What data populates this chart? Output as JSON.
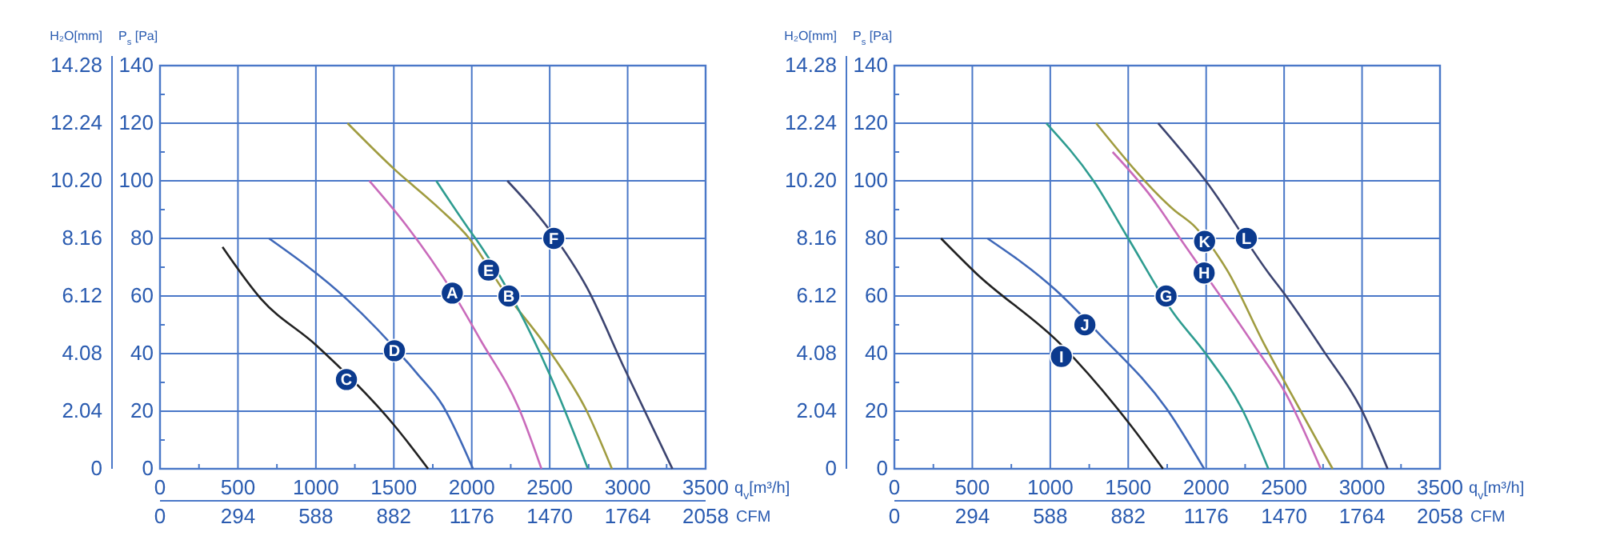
{
  "chart_data": [
    {
      "type": "line",
      "xlabel": "q$_{v}$[m³/h]",
      "ylabel": "P$_{s}$ [Pa]",
      "y2label": "H₂O[mm]",
      "x2label": "CFM",
      "xlim": [
        0,
        3500
      ],
      "xticks": [
        0,
        {
          "value": 250,
          "label": null
        },
        500,
        {
          "value": 750,
          "label": null
        },
        1000,
        {
          "value": 1250,
          "label": null
        },
        1500,
        {
          "value": 1750,
          "label": null
        },
        2000,
        {
          "value": 2250,
          "label": null
        },
        2500,
        {
          "value": 2750,
          "label": null
        },
        3000,
        {
          "value": 3250,
          "label": null
        },
        3500
      ],
      "x2lim": [
        0,
        2058
      ],
      "x2ticks": [
        0,
        294,
        588,
        882,
        1176,
        1470,
        1764,
        2058
      ],
      "ylim": [
        0,
        140
      ],
      "yticks": [
        0,
        {
          "value": 10,
          "label": null
        },
        20,
        {
          "value": 30,
          "label": null
        },
        40,
        {
          "value": 50,
          "label": null
        },
        60,
        {
          "value": 70,
          "label": null
        },
        80,
        {
          "value": 90,
          "label": null
        },
        100,
        {
          "value": 110,
          "label": null
        },
        120,
        {
          "value": 130,
          "label": null
        },
        140
      ],
      "y2lim": [
        0,
        14.28
      ],
      "y2ticks": [
        0,
        2.04,
        4.08,
        6.12,
        8.16,
        {
          "value": 10.2,
          "label": "10.20"
        },
        12.24,
        14.28
      ],
      "grid": true,
      "marker": "none",
      "line_style": "solid",
      "series": [
        {
          "color": "#222222",
          "x": [
            401,
            648,
            1000,
            1504,
            1720
          ],
          "values": [
            77,
            59,
            43,
            15,
            0
          ]
        },
        {
          "color": "#3f68b8",
          "x": [
            699,
            1196,
            1650,
            1813,
            2008
          ],
          "values": [
            80,
            59,
            33,
            22,
            0
          ]
        },
        {
          "color": "#c96bbb",
          "x": [
            1343,
            1573,
            1881,
            2053,
            2310,
            2447
          ],
          "values": [
            100,
            85,
            61,
            45,
            20,
            0
          ]
        },
        {
          "color": "#a09c40",
          "x": [
            1203,
            1504,
            1779,
            1984,
            2190,
            2498,
            2738,
            2899
          ],
          "values": [
            120,
            104,
            91,
            80,
            63,
            41,
            20,
            0
          ]
        },
        {
          "color": "#2e9c90",
          "x": [
            1772,
            1984,
            2050,
            2293,
            2498,
            2745
          ],
          "values": [
            100,
            83,
            78,
            56,
            33,
            0
          ]
        },
        {
          "color": "#3c4470",
          "x": [
            2228,
            2498,
            2738,
            2978,
            3287
          ],
          "values": [
            100,
            83,
            63,
            35,
            0
          ]
        }
      ],
      "annotations": [
        {
          "text": "A",
          "x": 1875,
          "y": 61
        },
        {
          "text": "B",
          "x": 2238,
          "y": 60
        },
        {
          "text": "C",
          "x": 1196,
          "y": 31
        },
        {
          "text": "D",
          "x": 1504,
          "y": 41
        },
        {
          "text": "E",
          "x": 2108,
          "y": 69
        },
        {
          "text": "F",
          "x": 2526,
          "y": 80
        }
      ]
    },
    {
      "type": "line",
      "xlabel": "q$_{v}$[m³/h]",
      "ylabel": "P$_{s}$ [Pa]",
      "y2label": "H₂O[mm]",
      "x2label": "CFM",
      "xlim": [
        0,
        3500
      ],
      "xticks": [
        0,
        {
          "value": 250,
          "label": null
        },
        500,
        {
          "value": 750,
          "label": null
        },
        1000,
        {
          "value": 1250,
          "label": null
        },
        1500,
        {
          "value": 1750,
          "label": null
        },
        2000,
        {
          "value": 2250,
          "label": null
        },
        2500,
        {
          "value": 2750,
          "label": null
        },
        3000,
        {
          "value": 3250,
          "label": null
        },
        3500
      ],
      "x2lim": [
        0,
        2058
      ],
      "x2ticks": [
        0,
        294,
        588,
        882,
        1176,
        1470,
        1764,
        2058
      ],
      "ylim": [
        0,
        140
      ],
      "yticks": [
        0,
        {
          "value": 10,
          "label": null
        },
        20,
        {
          "value": 30,
          "label": null
        },
        40,
        {
          "value": 50,
          "label": null
        },
        60,
        {
          "value": 70,
          "label": null
        },
        80,
        {
          "value": 90,
          "label": null
        },
        100,
        {
          "value": 110,
          "label": null
        },
        120,
        {
          "value": 130,
          "label": null
        },
        140
      ],
      "y2lim": [
        0,
        14.28
      ],
      "y2ticks": [
        0,
        2.04,
        4.08,
        6.12,
        8.16,
        {
          "value": 10.2,
          "label": "10.20"
        },
        12.24,
        14.28
      ],
      "grid": true,
      "marker": "none",
      "line_style": "solid",
      "series": [
        {
          "color": "#222222",
          "x": [
            299,
            522,
            1071,
            1517,
            1723
          ],
          "values": [
            80,
            68,
            43,
            15,
            0
          ]
        },
        {
          "color": "#3f68b8",
          "x": [
            597,
            1036,
            1311,
            1757,
            1987
          ],
          "values": [
            80,
            62,
            47,
            20,
            0
          ]
        },
        {
          "color": "#2e9c90",
          "x": [
            975,
            1277,
            1500,
            1791,
            1997,
            2237,
            2399
          ],
          "values": [
            120,
            100,
            80,
            54,
            40,
            20,
            0
          ]
        },
        {
          "color": "#c96bbb",
          "x": [
            1400,
            1654,
            1820,
            2306,
            2512,
            2735
          ],
          "values": [
            110,
            94,
            81,
            43,
            26,
            0
          ]
        },
        {
          "color": "#a09c40",
          "x": [
            1294,
            1791,
            1929,
            2134,
            2375,
            2546,
            2811
          ],
          "values": [
            120,
            90,
            84,
            69,
            43,
            26,
            0
          ]
        },
        {
          "color": "#3c4470",
          "x": [
            1692,
            1997,
            2400,
            2512,
            2752,
            2992,
            3164
          ],
          "values": [
            120,
            100,
            68,
            60,
            41,
            21,
            0
          ]
        }
      ],
      "annotations": [
        {
          "text": "G",
          "x": 1743,
          "y": 60
        },
        {
          "text": "H",
          "x": 1987,
          "y": 68
        },
        {
          "text": "I",
          "x": 1071,
          "y": 39
        },
        {
          "text": "J",
          "x": 1222,
          "y": 50
        },
        {
          "text": "K",
          "x": 1990,
          "y": 79
        },
        {
          "text": "L",
          "x": 2258,
          "y": 80
        }
      ]
    }
  ]
}
